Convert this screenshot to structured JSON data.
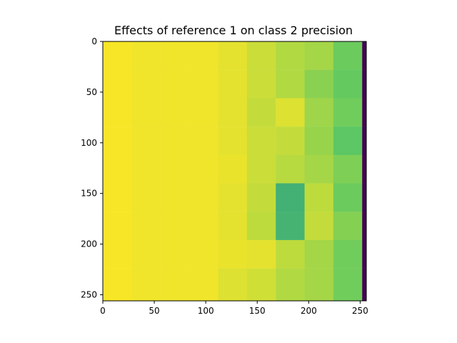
{
  "chart_data": {
    "type": "heatmap",
    "title": "Effects of reference 1 on class 2 precision",
    "xlabel": "",
    "ylabel": "",
    "xlim": [
      0,
      256
    ],
    "ylim": [
      256,
      0
    ],
    "x_ticks": [
      0,
      50,
      100,
      150,
      200,
      250
    ],
    "y_ticks": [
      0,
      50,
      100,
      150,
      200,
      250
    ],
    "x_tick_labels": [
      "0",
      "50",
      "100",
      "150",
      "200",
      "250"
    ],
    "y_tick_labels": [
      "0",
      "50",
      "100",
      "150",
      "200",
      "250"
    ],
    "colormap": "viridis",
    "cell_size": 28,
    "column_starts": [
      0,
      28,
      56,
      84,
      112,
      140,
      168,
      196,
      224,
      252
    ],
    "row_starts": [
      0,
      28,
      56,
      84,
      112,
      140,
      168,
      196,
      224,
      252
    ],
    "values": [
      [
        0.99,
        0.98,
        0.98,
        0.98,
        0.96,
        0.92,
        0.88,
        0.86,
        0.77,
        0.0
      ],
      [
        0.99,
        0.98,
        0.98,
        0.98,
        0.96,
        0.92,
        0.88,
        0.82,
        0.76,
        0.0
      ],
      [
        0.99,
        0.98,
        0.98,
        0.98,
        0.96,
        0.91,
        0.95,
        0.85,
        0.78,
        0.0
      ],
      [
        0.99,
        0.98,
        0.98,
        0.98,
        0.96,
        0.92,
        0.91,
        0.84,
        0.74,
        0.0
      ],
      [
        0.99,
        0.98,
        0.98,
        0.98,
        0.97,
        0.92,
        0.89,
        0.86,
        0.8,
        0.0
      ],
      [
        0.99,
        0.98,
        0.98,
        0.98,
        0.96,
        0.91,
        0.64,
        0.9,
        0.77,
        0.0
      ],
      [
        0.99,
        0.98,
        0.98,
        0.98,
        0.96,
        0.9,
        0.65,
        0.91,
        0.81,
        0.0
      ],
      [
        0.99,
        0.98,
        0.98,
        0.98,
        0.97,
        0.96,
        0.9,
        0.86,
        0.78,
        0.0
      ],
      [
        0.99,
        0.98,
        0.98,
        0.98,
        0.95,
        0.93,
        0.88,
        0.86,
        0.78,
        0.0
      ],
      [
        0.99,
        0.98,
        0.98,
        0.98,
        0.95,
        0.93,
        0.88,
        0.86,
        0.78,
        0.0
      ]
    ]
  }
}
